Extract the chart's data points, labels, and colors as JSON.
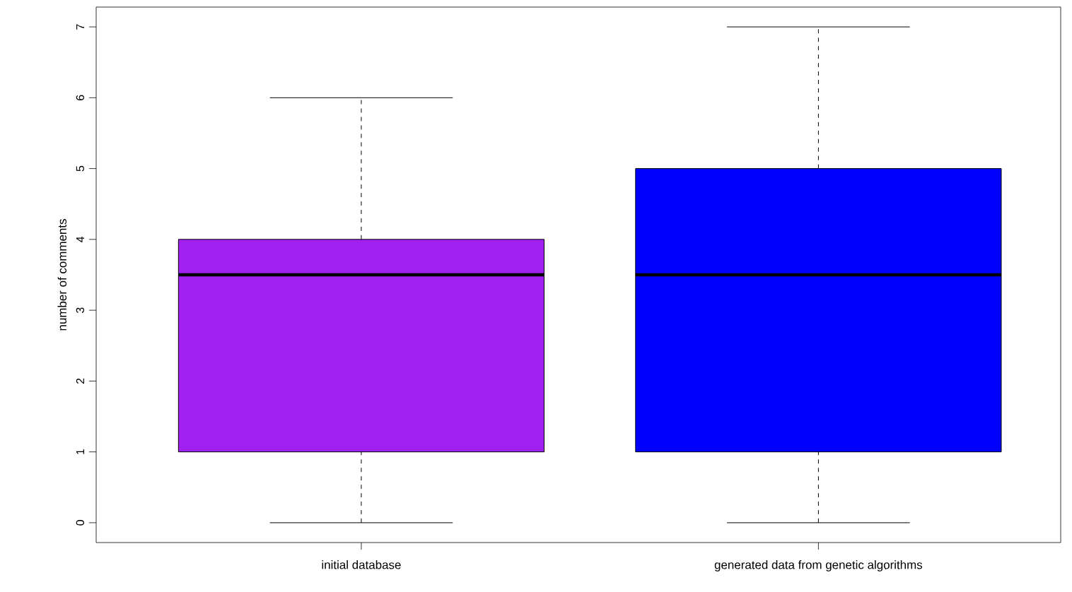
{
  "chart_data": {
    "type": "box",
    "ylabel": "number of comments",
    "categories": [
      "initial database",
      "generated data from genetic algorithms"
    ],
    "boxes": [
      {
        "low": 0,
        "q1": 1,
        "median": 3.5,
        "q3": 4,
        "high": 6
      },
      {
        "low": 0,
        "q1": 1,
        "median": 3.5,
        "q3": 5,
        "high": 7
      }
    ],
    "colors": [
      "#a020f0",
      "#0000ff"
    ],
    "ylim": [
      -0.28,
      7.28
    ],
    "yticks": [
      0,
      1,
      2,
      3,
      4,
      5,
      6,
      7
    ],
    "grid": false
  }
}
